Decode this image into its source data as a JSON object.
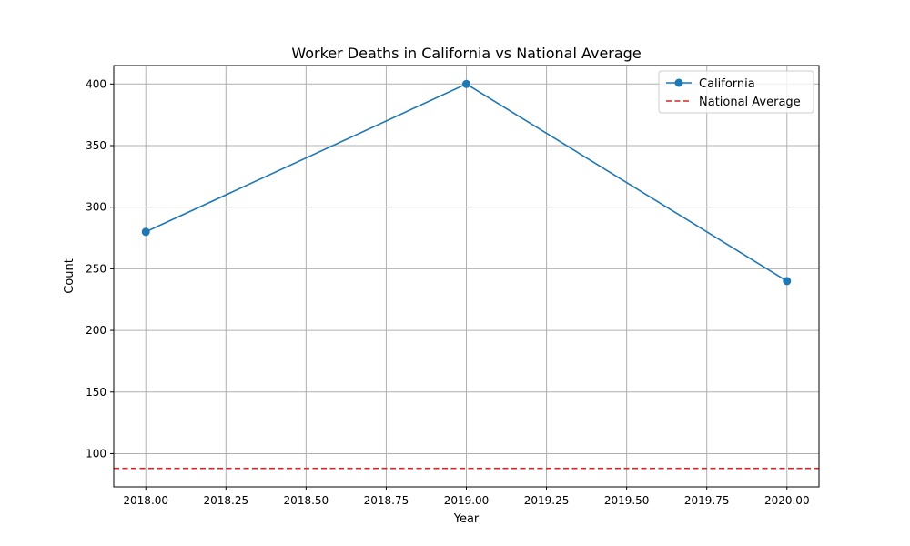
{
  "chart_data": {
    "type": "line",
    "title": "Worker Deaths in California vs National Average",
    "xlabel": "Year",
    "ylabel": "Count",
    "xlim": [
      2017.9,
      2020.1
    ],
    "ylim": [
      73,
      415
    ],
    "x_ticks": [
      2018.0,
      2018.25,
      2018.5,
      2018.75,
      2019.0,
      2019.25,
      2019.5,
      2019.75,
      2020.0
    ],
    "x_tick_labels": [
      "2018.00",
      "2018.25",
      "2018.50",
      "2018.75",
      "2019.00",
      "2019.25",
      "2019.50",
      "2019.75",
      "2020.00"
    ],
    "y_ticks": [
      100,
      150,
      200,
      250,
      300,
      350,
      400
    ],
    "y_tick_labels": [
      "100",
      "150",
      "200",
      "250",
      "300",
      "350",
      "400"
    ],
    "grid": true,
    "legend_position": "top-right",
    "series": [
      {
        "name": "California",
        "x": [
          2018,
          2019,
          2020
        ],
        "values": [
          280,
          400,
          240
        ],
        "color": "#1f77b4",
        "style": "solid",
        "marker": "circle"
      }
    ],
    "reference_lines": [
      {
        "name": "National Average",
        "y": 88,
        "color": "#d62728",
        "style": "dashed"
      }
    ],
    "grid_color": "#b0b0b0"
  }
}
